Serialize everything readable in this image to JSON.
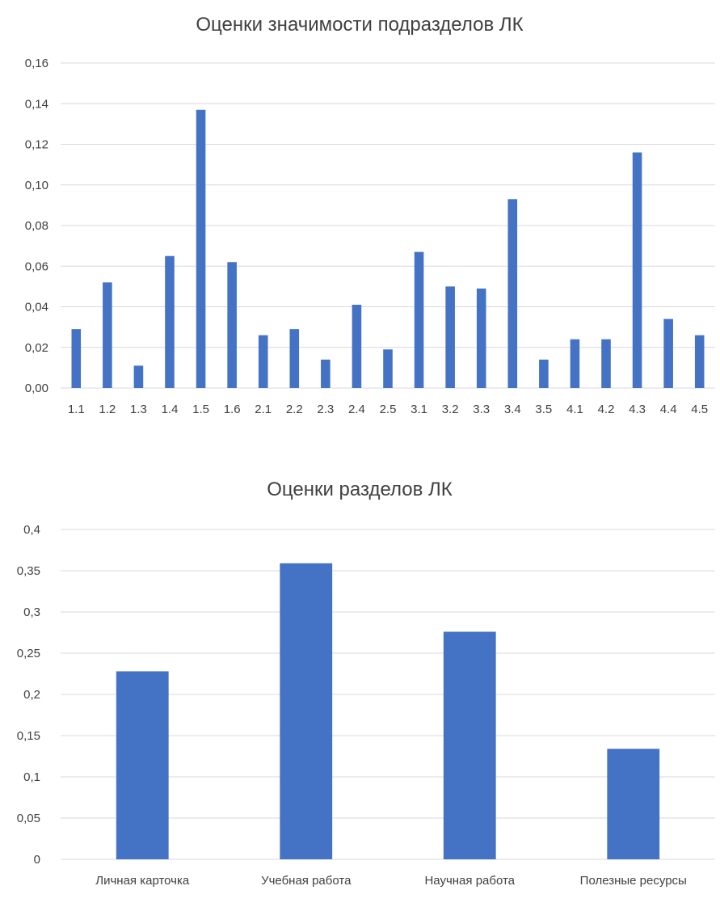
{
  "chart_data": [
    {
      "type": "bar",
      "title": "Оценки значимости подразделов ЛК",
      "xlabel": "",
      "ylabel": "",
      "categories": [
        "1.1",
        "1.2",
        "1.3",
        "1.4",
        "1.5",
        "1.6",
        "2.1",
        "2.2",
        "2.3",
        "2.4",
        "2.5",
        "3.1",
        "3.2",
        "3.3",
        "3.4",
        "3.5",
        "4.1",
        "4.2",
        "4.3",
        "4.4",
        "4.5"
      ],
      "values": [
        0.029,
        0.052,
        0.011,
        0.065,
        0.137,
        0.062,
        0.026,
        0.029,
        0.014,
        0.041,
        0.019,
        0.067,
        0.05,
        0.049,
        0.093,
        0.014,
        0.024,
        0.024,
        0.116,
        0.034,
        0.026
      ],
      "ylim": [
        0,
        0.16
      ],
      "yticks": [
        "0,00",
        "0,02",
        "0,04",
        "0,06",
        "0,08",
        "0,10",
        "0,12",
        "0,14",
        "0,16"
      ],
      "grid": true,
      "bar_color": "#4472c4"
    },
    {
      "type": "bar",
      "title": "Оценки разделов ЛК",
      "xlabel": "",
      "ylabel": "",
      "categories": [
        "Личная карточка",
        "Учебная работа",
        "Научная работа",
        "Полезные ресурсы"
      ],
      "values": [
        0.228,
        0.359,
        0.276,
        0.134
      ],
      "ylim": [
        0,
        0.4
      ],
      "yticks": [
        "0",
        "0,05",
        "0,1",
        "0,15",
        "0,2",
        "0,25",
        "0,3",
        "0,35",
        "0,4"
      ],
      "grid": true,
      "bar_color": "#4472c4"
    }
  ]
}
